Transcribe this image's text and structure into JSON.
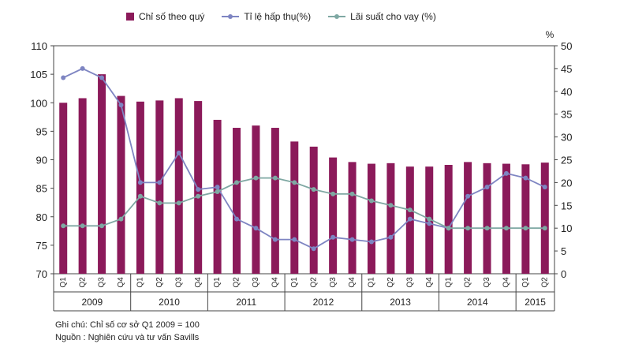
{
  "legend": {
    "bar_label": "Chỉ số theo quý",
    "absorption_label": "Tỉ lệ hấp thụ(%)",
    "rate_label": "Lãi suất cho vay (%)"
  },
  "notes": {
    "note": "Ghi chú: Chỉ số cơ sở Q1 2009 = 100",
    "source": "Nguồn : Nghiên cứu và tư vấn Savills"
  },
  "chart_data": {
    "type": "bar",
    "categories": [
      "Q1",
      "Q2",
      "Q3",
      "Q4",
      "Q1",
      "Q2",
      "Q3",
      "Q4",
      "Q1",
      "Q2",
      "Q3",
      "Q4",
      "Q1",
      "Q2",
      "Q3",
      "Q4",
      "Q1",
      "Q2",
      "Q3",
      "Q4",
      "Q1",
      "Q2",
      "Q3",
      "Q4",
      "Q1",
      "Q2"
    ],
    "years": [
      {
        "label": "2009",
        "quarters": 4
      },
      {
        "label": "2010",
        "quarters": 4
      },
      {
        "label": "2011",
        "quarters": 4
      },
      {
        "label": "2012",
        "quarters": 4
      },
      {
        "label": "2013",
        "quarters": 4
      },
      {
        "label": "2014",
        "quarters": 4
      },
      {
        "label": "2015",
        "quarters": 2
      }
    ],
    "series": [
      {
        "name": "Chỉ số theo quý",
        "axis": "left",
        "kind": "bar",
        "color": "#8b1a5a",
        "values": [
          100,
          100.8,
          105,
          101.2,
          100.2,
          100.4,
          100.8,
          100.3,
          97,
          95.6,
          96,
          95.6,
          93.2,
          92.3,
          90.4,
          89.6,
          89.3,
          89.4,
          88.8,
          88.8,
          89.1,
          89.6,
          89.4,
          89.3,
          89.2,
          89.5
        ]
      },
      {
        "name": "Tỉ lệ hấp thụ(%)",
        "axis": "right",
        "kind": "line",
        "color": "#7e85c2",
        "values": [
          43,
          45,
          43,
          37,
          20,
          20,
          26.5,
          18.5,
          19,
          12,
          10,
          7.5,
          7.5,
          5.5,
          8,
          7.5,
          7,
          8,
          12,
          11,
          10,
          17,
          19,
          22,
          21,
          19
        ]
      },
      {
        "name": "Lãi suất cho vay (%)",
        "axis": "right",
        "kind": "line",
        "color": "#7fa8a3",
        "values": [
          10.5,
          10.5,
          10.5,
          12,
          17,
          15.5,
          15.5,
          17,
          18,
          20,
          21,
          21,
          20,
          18.5,
          17.5,
          17.5,
          16,
          15,
          14,
          12,
          10,
          10,
          10,
          10,
          10,
          10
        ]
      }
    ],
    "left_axis": {
      "min": 70,
      "max": 110,
      "step": 5
    },
    "right_axis": {
      "min": 0,
      "max": 50,
      "step": 5,
      "label": "%"
    },
    "grid": false,
    "legend_position": "top"
  }
}
